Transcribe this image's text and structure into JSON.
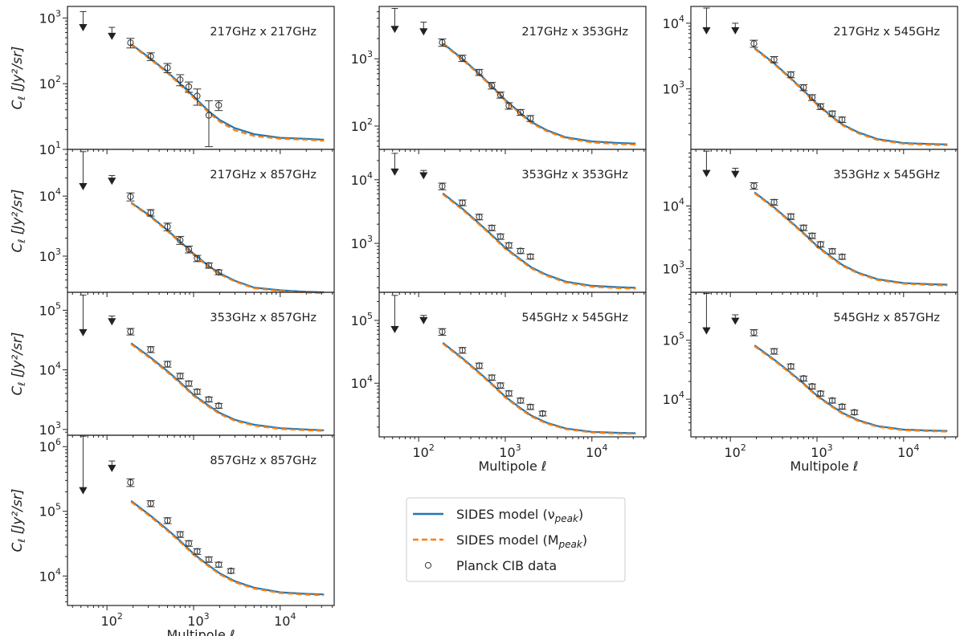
{
  "chart_data": {
    "type": "line",
    "x_label_text": "Multipole",
    "x_label_symbol": "ℓ",
    "y_label_text": "C",
    "y_label_sub": "ℓ",
    "y_label_units": "[Jy²/sr]",
    "xlim": [
      35,
      42000
    ],
    "model_ell": [
      190,
      320,
      500,
      700,
      1000,
      1500,
      2000,
      3000,
      5000,
      10000,
      20000,
      32000
    ],
    "legend": [
      {
        "label": "SIDES model (ν",
        "sub": "peak",
        "close": ")",
        "style": "solid",
        "color": "#1f77b4"
      },
      {
        "label": "SIDES model (M",
        "sub": "peak",
        "close": ")",
        "style": "dashed",
        "color": "#ff7f0e"
      },
      {
        "label": "Planck CIB data",
        "sub": "",
        "close": "",
        "style": "marker",
        "color": "#333333"
      }
    ],
    "panels": [
      {
        "title": "217GHz x 217GHz",
        "ylim": [
          10,
          1500
        ],
        "upper_limits": [
          {
            "ell": 53,
            "top": 1250,
            "bottom": 650
          },
          {
            "ell": 114,
            "top": 720,
            "bottom": 480
          }
        ],
        "points": [
          {
            "ell": 187,
            "y": 420,
            "err": 70
          },
          {
            "ell": 320,
            "y": 260,
            "err": 35
          },
          {
            "ell": 500,
            "y": 175,
            "err": 28
          },
          {
            "ell": 700,
            "y": 115,
            "err": 22
          },
          {
            "ell": 880,
            "y": 90,
            "err": 16
          },
          {
            "ell": 1100,
            "y": 65,
            "err": 18
          },
          {
            "ell": 1500,
            "y": 33,
            "err": 22
          },
          {
            "ell": 1950,
            "y": 47,
            "err": 8
          }
        ],
        "model_nu": [
          400,
          240,
          150,
          100,
          64,
          38,
          28,
          21,
          17,
          15,
          14.5,
          14
        ],
        "model_m": [
          390,
          232,
          145,
          96,
          61,
          36,
          26.5,
          19.5,
          16,
          14.5,
          14,
          13.5
        ]
      },
      {
        "title": "217GHz x 857GHz",
        "ylim": [
          250,
          60000
        ],
        "upper_limits": [
          {
            "ell": 53,
            "top": 55000,
            "bottom": 13000
          },
          {
            "ell": 114,
            "top": 22000,
            "bottom": 16000
          }
        ],
        "points": [
          {
            "ell": 187,
            "y": 9800,
            "err": 1500
          },
          {
            "ell": 320,
            "y": 5300,
            "err": 650
          },
          {
            "ell": 500,
            "y": 3100,
            "err": 450
          },
          {
            "ell": 700,
            "y": 1850,
            "err": 280
          },
          {
            "ell": 880,
            "y": 1300,
            "err": 170
          },
          {
            "ell": 1100,
            "y": 920,
            "err": 110
          },
          {
            "ell": 1500,
            "y": 700,
            "err": 70
          },
          {
            "ell": 1950,
            "y": 540,
            "err": 50
          }
        ],
        "model_nu": [
          7800,
          4600,
          2700,
          1750,
          1100,
          680,
          520,
          390,
          300,
          270,
          255,
          250
        ],
        "model_m": [
          7600,
          4450,
          2600,
          1680,
          1060,
          655,
          500,
          378,
          292,
          262,
          248,
          242
        ]
      },
      {
        "title": "353GHz x 857GHz",
        "ylim": [
          800,
          200000
        ],
        "upper_limits": [
          {
            "ell": 53,
            "top": 180000,
            "bottom": 38000
          },
          {
            "ell": 114,
            "top": 80000,
            "bottom": 58000
          }
        ],
        "points": [
          {
            "ell": 187,
            "y": 44000,
            "err": 5500
          },
          {
            "ell": 320,
            "y": 22000,
            "err": 2500
          },
          {
            "ell": 500,
            "y": 12500,
            "err": 1400
          },
          {
            "ell": 700,
            "y": 7900,
            "err": 850
          },
          {
            "ell": 880,
            "y": 5900,
            "err": 600
          },
          {
            "ell": 1100,
            "y": 4300,
            "err": 420
          },
          {
            "ell": 1500,
            "y": 3200,
            "err": 300
          },
          {
            "ell": 1950,
            "y": 2500,
            "err": 230
          }
        ],
        "model_nu": [
          28000,
          16000,
          9500,
          6200,
          3800,
          2500,
          1900,
          1450,
          1200,
          1050,
          1000,
          970
        ],
        "model_m": [
          27000,
          15400,
          9100,
          5950,
          3650,
          2400,
          1820,
          1400,
          1160,
          1020,
          970,
          945
        ]
      },
      {
        "title": "857GHz x 857GHz",
        "ylim": [
          3500,
          1500000
        ],
        "upper_limits": [
          {
            "ell": 53,
            "top": 1450000,
            "bottom": 190000
          },
          {
            "ell": 114,
            "top": 600000,
            "bottom": 420000
          }
        ],
        "points": [
          {
            "ell": 187,
            "y": 280000,
            "err": 38000
          },
          {
            "ell": 320,
            "y": 132000,
            "err": 14000
          },
          {
            "ell": 500,
            "y": 72000,
            "err": 7500
          },
          {
            "ell": 700,
            "y": 44000,
            "err": 4500
          },
          {
            "ell": 880,
            "y": 32000,
            "err": 3200
          },
          {
            "ell": 1100,
            "y": 24000,
            "err": 2400
          },
          {
            "ell": 1500,
            "y": 18000,
            "err": 1700
          },
          {
            "ell": 1950,
            "y": 15000,
            "err": 1300
          },
          {
            "ell": 2700,
            "y": 12000,
            "err": 1000
          }
        ],
        "model_nu": [
          145000,
          85000,
          52000,
          35000,
          22000,
          14500,
          11000,
          8300,
          6600,
          5600,
          5300,
          5200
        ],
        "model_m": [
          140000,
          82000,
          50000,
          33500,
          21200,
          14000,
          10600,
          8000,
          6400,
          5450,
          5150,
          5050
        ]
      },
      {
        "title": "217GHz x 353GHz",
        "ylim": [
          45,
          6000
        ],
        "upper_limits": [
          {
            "ell": 53,
            "top": 5600,
            "bottom": 2500
          },
          {
            "ell": 114,
            "top": 3500,
            "bottom": 2300
          }
        ],
        "points": [
          {
            "ell": 187,
            "y": 1750,
            "err": 220
          },
          {
            "ell": 320,
            "y": 1020,
            "err": 110
          },
          {
            "ell": 500,
            "y": 630,
            "err": 65
          },
          {
            "ell": 700,
            "y": 400,
            "err": 45
          },
          {
            "ell": 880,
            "y": 290,
            "err": 30
          },
          {
            "ell": 1100,
            "y": 200,
            "err": 22
          },
          {
            "ell": 1500,
            "y": 160,
            "err": 16
          },
          {
            "ell": 1950,
            "y": 130,
            "err": 13
          }
        ],
        "model_nu": [
          1700,
          1000,
          600,
          390,
          245,
          155,
          115,
          87,
          68,
          59,
          56,
          55
        ],
        "model_m": [
          1650,
          970,
          580,
          378,
          238,
          150,
          111,
          84,
          66,
          57,
          54,
          53
        ]
      },
      {
        "title": "353GHz x 353GHz",
        "ylim": [
          170,
          30000
        ],
        "upper_limits": [
          {
            "ell": 53,
            "top": 26000,
            "bottom": 12000
          },
          {
            "ell": 114,
            "top": 14000,
            "bottom": 10500
          }
        ],
        "points": [
          {
            "ell": 187,
            "y": 7900,
            "err": 950
          },
          {
            "ell": 320,
            "y": 4350,
            "err": 450
          },
          {
            "ell": 500,
            "y": 2600,
            "err": 260
          },
          {
            "ell": 700,
            "y": 1750,
            "err": 170
          },
          {
            "ell": 880,
            "y": 1280,
            "err": 125
          },
          {
            "ell": 1100,
            "y": 930,
            "err": 90
          },
          {
            "ell": 1500,
            "y": 760,
            "err": 70
          },
          {
            "ell": 1950,
            "y": 620,
            "err": 55
          }
        ],
        "model_nu": [
          6100,
          3500,
          2050,
          1350,
          850,
          560,
          420,
          320,
          250,
          215,
          205,
          200
        ],
        "model_m": [
          5900,
          3380,
          1980,
          1300,
          820,
          540,
          405,
          310,
          242,
          208,
          198,
          194
        ]
      },
      {
        "title": "545GHz x 545GHz",
        "ylim": [
          1400,
          280000
        ],
        "upper_limits": [
          {
            "ell": 53,
            "top": 250000,
            "bottom": 65000
          },
          {
            "ell": 114,
            "top": 120000,
            "bottom": 90000
          }
        ],
        "points": [
          {
            "ell": 187,
            "y": 66000,
            "err": 8000
          },
          {
            "ell": 320,
            "y": 33500,
            "err": 3500
          },
          {
            "ell": 500,
            "y": 19000,
            "err": 1900
          },
          {
            "ell": 700,
            "y": 12300,
            "err": 1200
          },
          {
            "ell": 880,
            "y": 9200,
            "err": 900
          },
          {
            "ell": 1100,
            "y": 6900,
            "err": 650
          },
          {
            "ell": 1500,
            "y": 5300,
            "err": 480
          },
          {
            "ell": 1950,
            "y": 4200,
            "err": 380
          },
          {
            "ell": 2700,
            "y": 3300,
            "err": 280
          }
        ],
        "model_nu": [
          44000,
          25000,
          14800,
          9800,
          6100,
          4000,
          3050,
          2350,
          1900,
          1680,
          1620,
          1600
        ],
        "model_m": [
          42500,
          24200,
          14300,
          9450,
          5900,
          3860,
          2950,
          2280,
          1850,
          1640,
          1580,
          1560
        ]
      },
      {
        "title": "217GHz x 545GHz",
        "ylim": [
          120,
          18000
        ],
        "upper_limits": [
          {
            "ell": 53,
            "top": 17000,
            "bottom": 7000
          },
          {
            "ell": 114,
            "top": 10000,
            "bottom": 7000
          }
        ],
        "points": [
          {
            "ell": 187,
            "y": 4900,
            "err": 600
          },
          {
            "ell": 320,
            "y": 2800,
            "err": 300
          },
          {
            "ell": 500,
            "y": 1650,
            "err": 170
          },
          {
            "ell": 700,
            "y": 1050,
            "err": 110
          },
          {
            "ell": 880,
            "y": 740,
            "err": 75
          },
          {
            "ell": 1100,
            "y": 540,
            "err": 55
          },
          {
            "ell": 1500,
            "y": 420,
            "err": 40
          },
          {
            "ell": 1950,
            "y": 340,
            "err": 32
          }
        ],
        "model_nu": [
          4200,
          2450,
          1450,
          950,
          590,
          375,
          285,
          218,
          172,
          150,
          145,
          143
        ],
        "model_m": [
          4080,
          2380,
          1410,
          920,
          572,
          364,
          276,
          211,
          167,
          146,
          141,
          139
        ]
      },
      {
        "title": "353GHz x 545GHz",
        "ylim": [
          420,
          80000
        ],
        "upper_limits": [
          {
            "ell": 53,
            "top": 75000,
            "bottom": 30000
          },
          {
            "ell": 114,
            "top": 40000,
            "bottom": 29000
          }
        ],
        "points": [
          {
            "ell": 187,
            "y": 21000,
            "err": 2500
          },
          {
            "ell": 320,
            "y": 11500,
            "err": 1200
          },
          {
            "ell": 500,
            "y": 6800,
            "err": 700
          },
          {
            "ell": 700,
            "y": 4500,
            "err": 450
          },
          {
            "ell": 880,
            "y": 3350,
            "err": 330
          },
          {
            "ell": 1100,
            "y": 2450,
            "err": 240
          },
          {
            "ell": 1500,
            "y": 1900,
            "err": 180
          },
          {
            "ell": 1950,
            "y": 1550,
            "err": 140
          }
        ],
        "model_nu": [
          16500,
          9500,
          5600,
          3700,
          2300,
          1500,
          1130,
          860,
          680,
          590,
          565,
          555
        ],
        "model_m": [
          16000,
          9200,
          5420,
          3580,
          2230,
          1450,
          1095,
          835,
          660,
          575,
          550,
          540
        ]
      },
      {
        "title": "545GHz x 857GHz",
        "ylim": [
          2300,
          650000
        ],
        "upper_limits": [
          {
            "ell": 53,
            "top": 620000,
            "bottom": 130000
          },
          {
            "ell": 114,
            "top": 270000,
            "bottom": 190000
          }
        ],
        "points": [
          {
            "ell": 187,
            "y": 135000,
            "err": 16000
          },
          {
            "ell": 320,
            "y": 65000,
            "err": 7000
          },
          {
            "ell": 500,
            "y": 36000,
            "err": 3600
          },
          {
            "ell": 700,
            "y": 22500,
            "err": 2200
          },
          {
            "ell": 880,
            "y": 16500,
            "err": 1600
          },
          {
            "ell": 1100,
            "y": 12500,
            "err": 1200
          },
          {
            "ell": 1500,
            "y": 9500,
            "err": 900
          },
          {
            "ell": 1950,
            "y": 7500,
            "err": 700
          },
          {
            "ell": 2700,
            "y": 6000,
            "err": 520
          }
        ],
        "model_nu": [
          82000,
          47000,
          28000,
          18500,
          11500,
          7600,
          5800,
          4400,
          3500,
          3050,
          2950,
          2900
        ],
        "model_m": [
          79000,
          45500,
          27000,
          17900,
          11100,
          7350,
          5600,
          4270,
          3400,
          2970,
          2870,
          2820
        ]
      }
    ],
    "xticks": [
      100,
      1000,
      10000
    ],
    "xtick_labels": [
      {
        "base": "10",
        "exp": "2"
      },
      {
        "base": "10",
        "exp": "3"
      },
      {
        "base": "10",
        "exp": "4"
      }
    ],
    "yticks": [
      [
        {
          "value": 10,
          "base": "10",
          "exp": "1"
        },
        {
          "value": 100,
          "base": "10",
          "exp": "2"
        },
        {
          "value": 1000,
          "base": "10",
          "exp": "3"
        }
      ],
      [
        {
          "value": 1000,
          "base": "10",
          "exp": "3"
        },
        {
          "value": 10000,
          "base": "10",
          "exp": "4"
        }
      ],
      [
        {
          "value": 1000,
          "base": "10",
          "exp": "3"
        },
        {
          "value": 10000,
          "base": "10",
          "exp": "4"
        },
        {
          "value": 100000,
          "base": "10",
          "exp": "5"
        }
      ],
      [
        {
          "value": 10000,
          "base": "10",
          "exp": "4"
        },
        {
          "value": 100000,
          "base": "10",
          "exp": "5"
        },
        {
          "value": 1000000,
          "base": "10",
          "exp": "6"
        }
      ],
      [
        {
          "value": 100,
          "base": "10",
          "exp": "2"
        },
        {
          "value": 1000,
          "base": "10",
          "exp": "3"
        }
      ],
      [
        {
          "value": 1000,
          "base": "10",
          "exp": "3"
        },
        {
          "value": 10000,
          "base": "10",
          "exp": "4"
        }
      ],
      [
        {
          "value": 10000,
          "base": "10",
          "exp": "4"
        },
        {
          "value": 100000,
          "base": "10",
          "exp": "5"
        }
      ],
      [
        {
          "value": 1000,
          "base": "10",
          "exp": "3"
        },
        {
          "value": 10000,
          "base": "10",
          "exp": "4"
        }
      ],
      [
        {
          "value": 1000,
          "base": "10",
          "exp": "3"
        },
        {
          "value": 10000,
          "base": "10",
          "exp": "4"
        }
      ],
      [
        {
          "value": 10000,
          "base": "10",
          "exp": "4"
        },
        {
          "value": 100000,
          "base": "10",
          "exp": "5"
        }
      ]
    ]
  }
}
